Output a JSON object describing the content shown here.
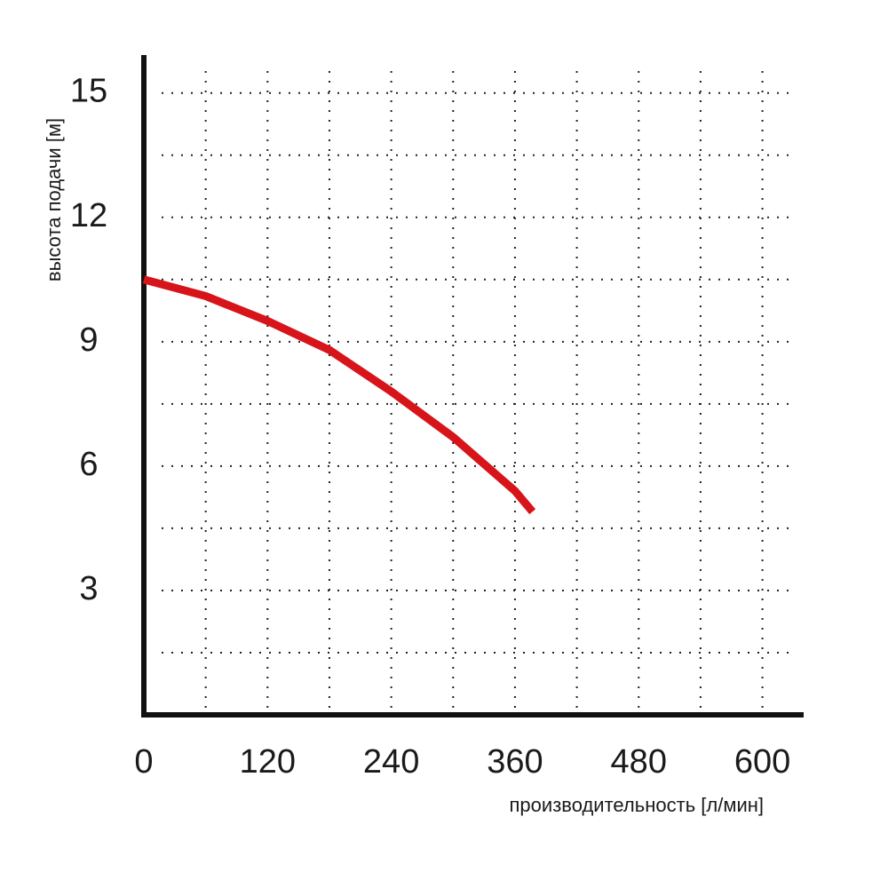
{
  "chart_data": {
    "type": "line",
    "x_label": "производительность [л/мин]",
    "y_label": "высота подачи [м]",
    "xlim": [
      0,
      640
    ],
    "ylim": [
      0,
      16
    ],
    "xticks": [
      0,
      120,
      240,
      360,
      480,
      600
    ],
    "yticks": [
      3,
      6,
      9,
      12,
      15
    ],
    "xgrid": [
      60,
      120,
      180,
      240,
      300,
      360,
      420,
      480,
      540,
      600
    ],
    "ygrid": [
      1.5,
      3,
      4.5,
      6,
      7.5,
      9,
      10.5,
      12,
      13.5,
      15
    ],
    "grid": true,
    "series": [
      {
        "color": "#d7141a",
        "x": [
          0,
          60,
          120,
          180,
          240,
          300,
          360,
          377
        ],
        "values": [
          10.5,
          10.1,
          9.5,
          8.8,
          7.8,
          6.7,
          5.4,
          4.9
        ]
      }
    ]
  }
}
